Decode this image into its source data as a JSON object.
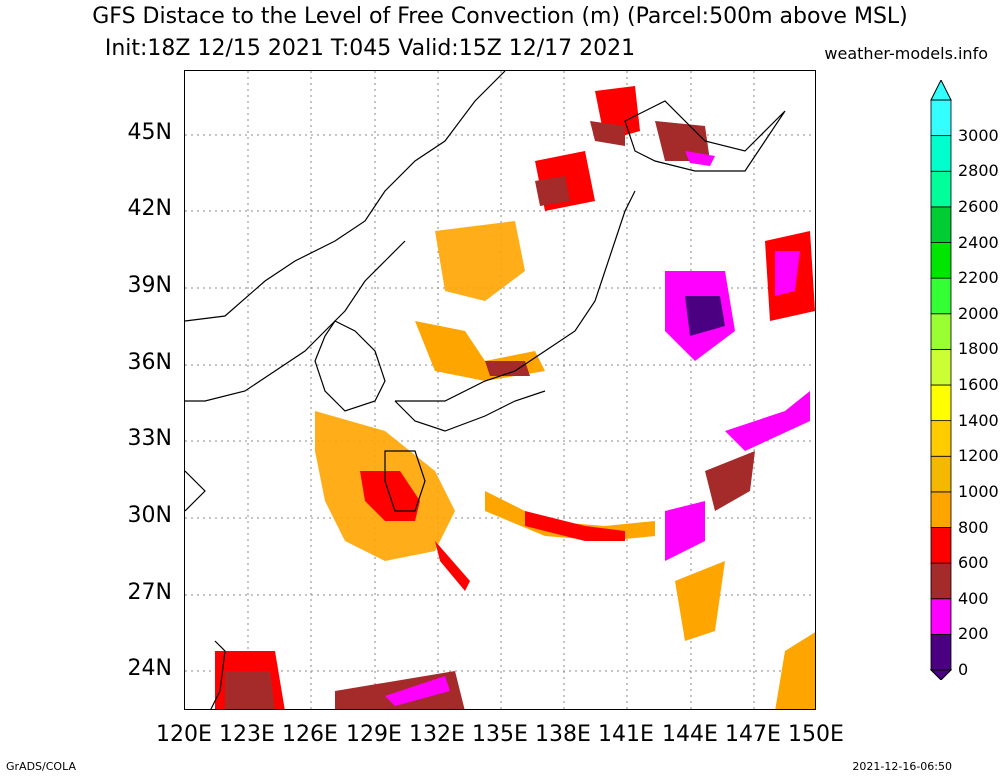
{
  "title_line1": "GFS Distace to the Level of Free Convection (m) (Parcel:500m above MSL)",
  "title_line2": "Init:18Z 12/15 2021 T:045 Valid:15Z 12/17 2021",
  "site": "weather-models.info",
  "footer_left": "GrADS/COLA",
  "footer_right": "2021-12-16-06:50",
  "map": {
    "lon_labels": [
      "120E",
      "123E",
      "126E",
      "129E",
      "132E",
      "135E",
      "138E",
      "141E",
      "144E",
      "147E",
      "150E"
    ],
    "lat_labels": [
      "24N",
      "27N",
      "30N",
      "33N",
      "36N",
      "39N",
      "42N",
      "45N"
    ],
    "lon_range": [
      120,
      150
    ],
    "lat_range": [
      22.5,
      47.5
    ],
    "grid": true
  },
  "colorbar": {
    "labels": [
      "0",
      "200",
      "400",
      "600",
      "800",
      "1000",
      "1200",
      "1400",
      "1600",
      "1800",
      "2000",
      "2200",
      "2400",
      "2600",
      "2800",
      "3000"
    ],
    "colors": [
      "#4b0082",
      "#ff00ff",
      "#a52a2a",
      "#ff0000",
      "#ffa500",
      "#f5b800",
      "#ffcc00",
      "#ffff00",
      "#ccff33",
      "#99ff33",
      "#33ff33",
      "#00e600",
      "#00cc33",
      "#00ff99",
      "#00ffcc",
      "#33ffff"
    ]
  }
}
